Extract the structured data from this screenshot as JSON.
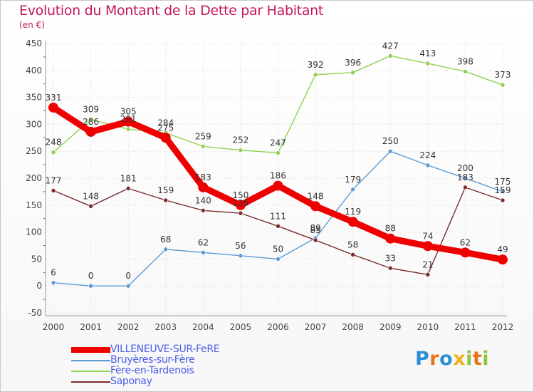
{
  "title": "Evolution du Montant de la Dette par Habitant",
  "unit_label": "(en €)",
  "logo": {
    "text": "Proxiti",
    "letters": [
      "P",
      "r",
      "o",
      "x",
      "i",
      "t",
      "i"
    ],
    "colors": [
      "#2b8fd6",
      "#e8731a",
      "#2b8fd6",
      "#f2b01e",
      "#8cc63f",
      "#e8731a",
      "#8cc63f"
    ]
  },
  "chart_data": {
    "type": "line",
    "categories": [
      "2000",
      "2001",
      "2002",
      "2003",
      "2004",
      "2005",
      "2006",
      "2007",
      "2008",
      "2009",
      "2010",
      "2011",
      "2012"
    ],
    "ylim": [
      -50,
      450
    ],
    "yticks": [
      "-50",
      "0",
      "50",
      "100",
      "150",
      "200",
      "250",
      "300",
      "350",
      "400",
      "450"
    ],
    "grid": true,
    "legend_position": "bottom-left",
    "series": [
      {
        "name": "VILLENEUVE-SUR-FeRE",
        "color": "#ee0000",
        "thick": true,
        "values": [
          331,
          286,
          305,
          275,
          183,
          150,
          186,
          148,
          119,
          88,
          74,
          62,
          49
        ],
        "labels": [
          "331",
          "286",
          "305",
          "275",
          "183",
          "150",
          "186",
          "148",
          "119",
          "88",
          "74",
          "62",
          "49"
        ]
      },
      {
        "name": "Bruyères-sur-Fère",
        "color": "#5b9bd5",
        "thick": false,
        "values": [
          6,
          0,
          0,
          68,
          62,
          56,
          50,
          89,
          179,
          250,
          224,
          200,
          175
        ],
        "labels": [
          "6",
          "0",
          "0",
          "68",
          "62",
          "56",
          "50",
          "89",
          "179",
          "250",
          "224",
          "200",
          "175"
        ]
      },
      {
        "name": "Fère-en-Tardenois",
        "color": "#8fd14f",
        "thick": false,
        "values": [
          248,
          309,
          291,
          284,
          259,
          252,
          247,
          392,
          396,
          427,
          413,
          398,
          373
        ],
        "labels": [
          "248",
          "309",
          "291",
          "284",
          "259",
          "252",
          "247",
          "392",
          "396",
          "427",
          "413",
          "398",
          "373"
        ]
      },
      {
        "name": "Saponay",
        "color": "#7b2b2b",
        "thick": false,
        "values": [
          177,
          148,
          181,
          159,
          140,
          135,
          111,
          85,
          58,
          33,
          21,
          183,
          159
        ],
        "labels": [
          "177",
          "148",
          "181",
          "159",
          "140",
          "135",
          "111",
          "85",
          "58",
          "33",
          "21",
          "183",
          "159"
        ]
      }
    ]
  }
}
